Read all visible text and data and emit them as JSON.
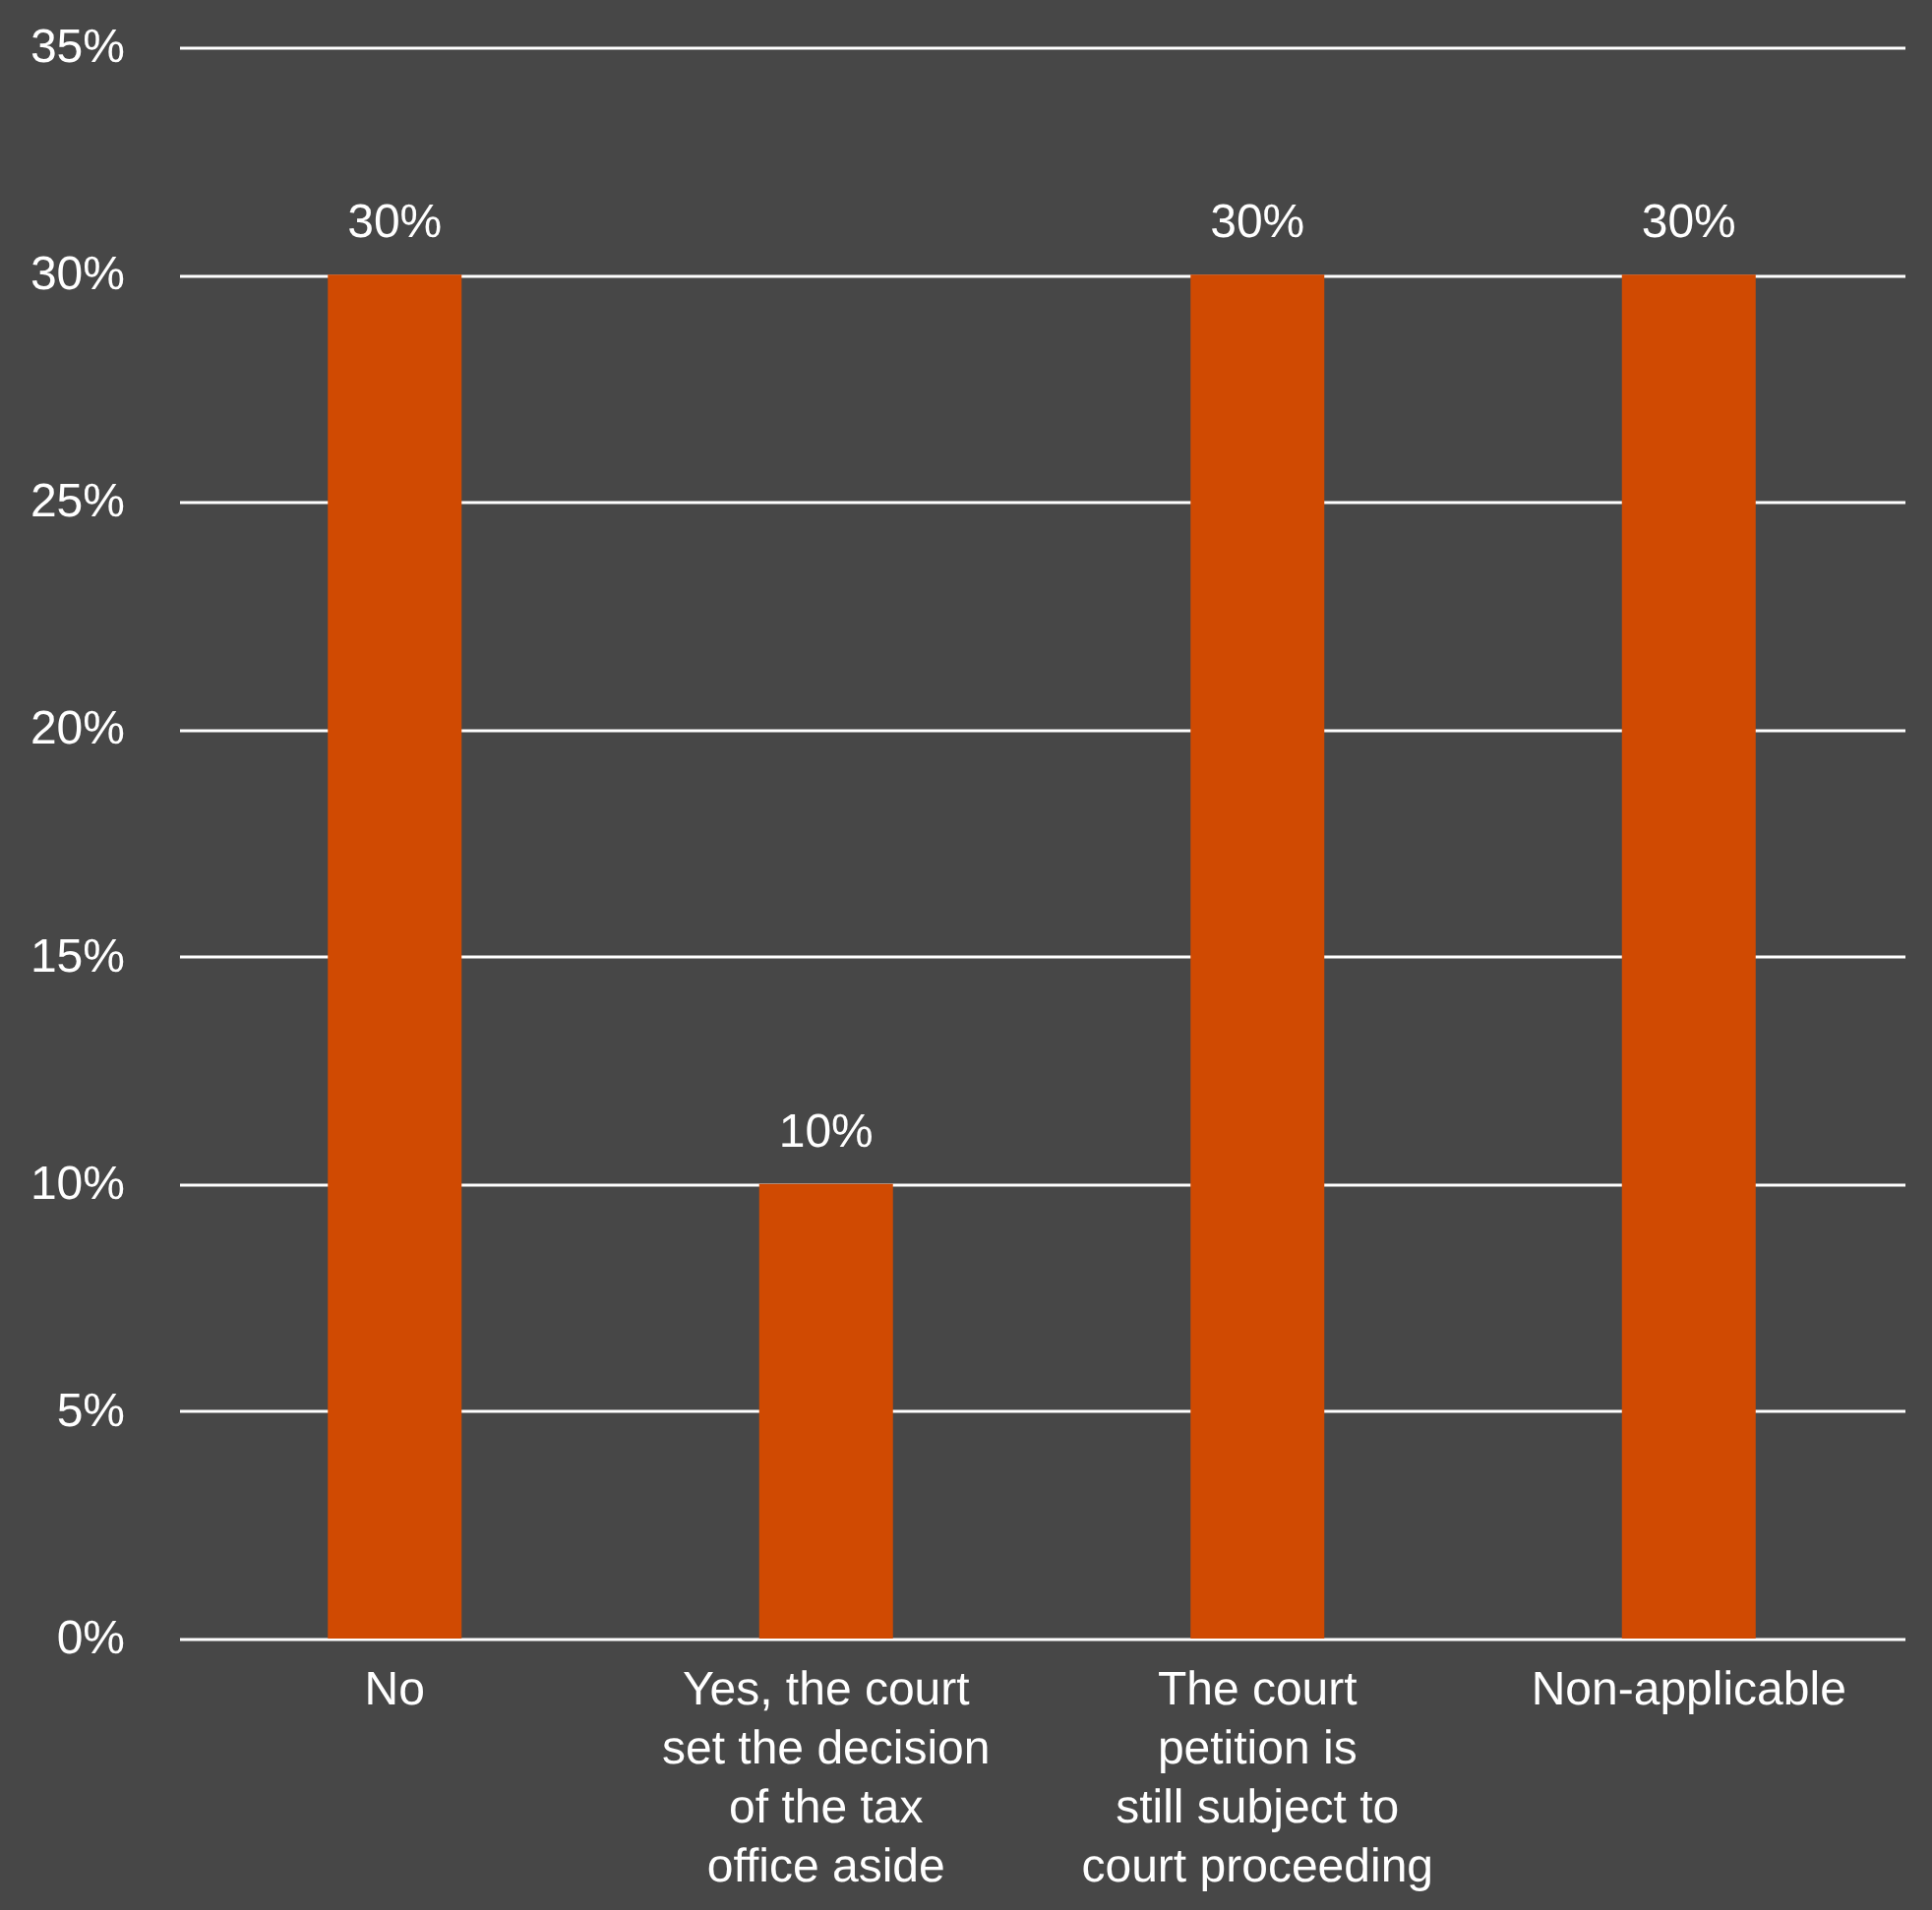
{
  "chart_data": {
    "type": "bar",
    "categories": [
      "No",
      "Yes, the court set the decision of the tax office aside",
      "The court petition is still subject to court proceeding",
      "Non-applicable"
    ],
    "values": [
      30,
      10,
      30,
      30
    ],
    "color": "#d04a02",
    "value_labels": [
      "30%",
      "10%",
      "30%",
      "30%"
    ],
    "ylim": [
      0,
      35
    ],
    "yticks": [
      {
        "value": 0,
        "label": "0%"
      },
      {
        "value": 5,
        "label": "5%"
      },
      {
        "value": 10,
        "label": "10%"
      },
      {
        "value": 15,
        "label": "15%"
      },
      {
        "value": 20,
        "label": "20%"
      },
      {
        "value": 25,
        "label": "25%"
      },
      {
        "value": 30,
        "label": "30%"
      },
      {
        "value": 35,
        "label": "35%"
      }
    ],
    "grid": "y"
  }
}
